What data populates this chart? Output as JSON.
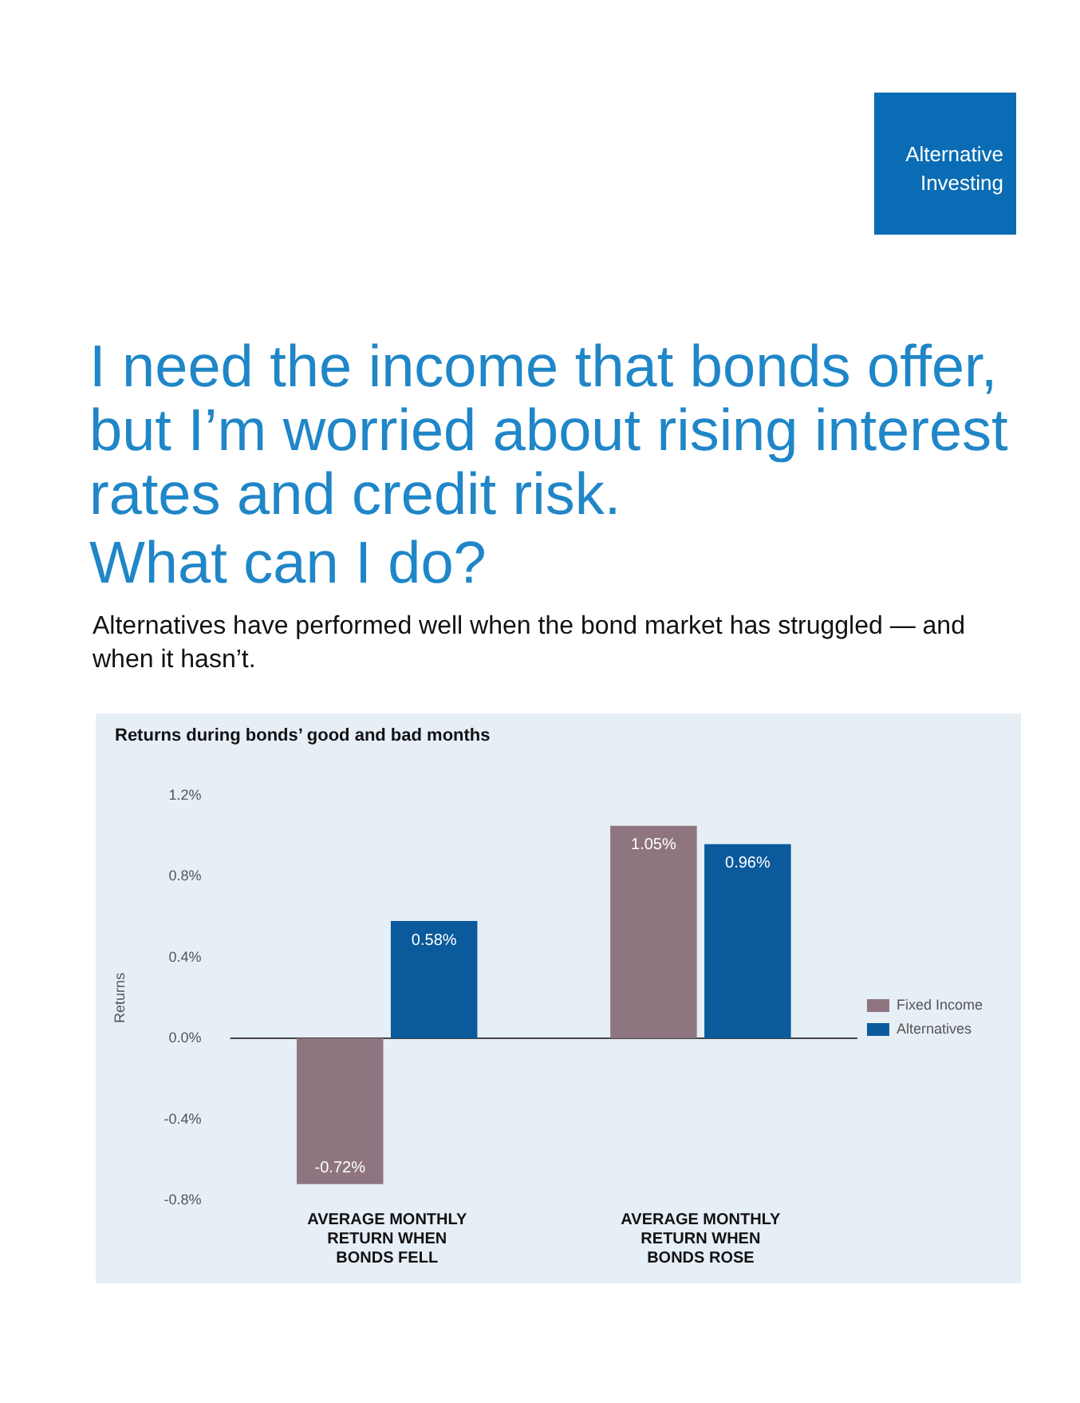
{
  "chart_data": {
    "type": "bar",
    "title": "Returns during bonds’ good and bad months",
    "ylabel": "Returns",
    "annotations": [
      "Alternative Investing",
      "I need the income that bonds offer, but I’m worried about rising interest rates and credit risk.",
      "What can I do?",
      "Alternatives have performed well when the bond market has struggled — and when it hasn’t."
    ],
    "categories": [
      "AVERAGE MONTHLY RETURN WHEN BONDS FELL",
      "AVERAGE MONTHLY RETURN WHEN BONDS ROSE"
    ],
    "series": [
      {
        "name": "Fixed Income",
        "color": "#8e7580",
        "values": [
          -0.72,
          1.05
        ],
        "value_labels": [
          "-0.72%",
          "1.05%"
        ]
      },
      {
        "name": "Alternatives",
        "color": "#0a5a9c",
        "values": [
          0.58,
          0.96
        ],
        "value_labels": [
          "0.58%",
          "0.96%"
        ]
      }
    ],
    "ylim": [
      -0.8,
      1.2
    ],
    "yticks": [
      {
        "value": -0.8,
        "label": "-0.8%"
      },
      {
        "value": -0.4,
        "label": "-0.4%"
      },
      {
        "value": 0,
        "label": "0.0%"
      },
      {
        "value": 0.4,
        "label": "0.4%"
      },
      {
        "value": 0.8,
        "label": "0.8%"
      },
      {
        "value": 1.2,
        "label": "1.2%"
      }
    ],
    "ref_lines": [
      {
        "axis": "y",
        "value": 0,
        "color": "#444444"
      }
    ],
    "grid": false,
    "legend": "right"
  }
}
